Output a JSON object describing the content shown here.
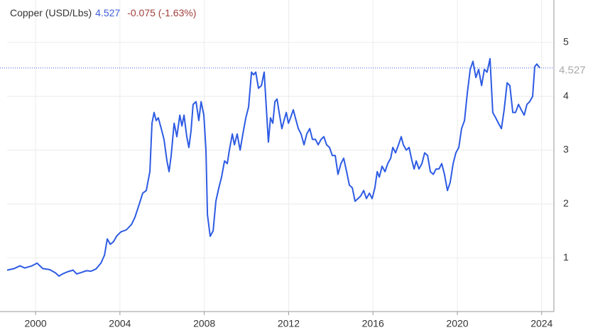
{
  "header": {
    "name": "Copper (USD/Lbs)",
    "price": "4.527",
    "change": "-0.075 (-1.63%)"
  },
  "chart_data": {
    "type": "line",
    "x": [
      1998.65,
      1998.99,
      1999.26,
      1999.49,
      1999.83,
      2000.07,
      2000.34,
      2000.67,
      2000.94,
      2001.11,
      2001.28,
      2001.52,
      2001.78,
      2001.95,
      2002.19,
      2002.42,
      2002.63,
      2002.86,
      2003.1,
      2003.27,
      2003.4,
      2003.54,
      2003.7,
      2003.84,
      2004.04,
      2004.31,
      2004.55,
      2004.71,
      2004.92,
      2005.08,
      2005.25,
      2005.42,
      2005.52,
      2005.62,
      2005.72,
      2005.82,
      2005.96,
      2006.09,
      2006.23,
      2006.33,
      2006.43,
      2006.57,
      2006.7,
      2006.84,
      2006.94,
      2007.04,
      2007.17,
      2007.27,
      2007.37,
      2007.47,
      2007.61,
      2007.74,
      2007.85,
      2007.98,
      2008.08,
      2008.15,
      2008.28,
      2008.42,
      2008.55,
      2008.69,
      2008.82,
      2008.96,
      2009.09,
      2009.19,
      2009.33,
      2009.43,
      2009.56,
      2009.7,
      2009.83,
      2009.97,
      2010.1,
      2010.24,
      2010.34,
      2010.44,
      2010.57,
      2010.71,
      2010.84,
      2010.94,
      2011.04,
      2011.14,
      2011.25,
      2011.35,
      2011.45,
      2011.55,
      2011.68,
      2011.78,
      2011.89,
      2011.99,
      2012.09,
      2012.22,
      2012.32,
      2012.46,
      2012.59,
      2012.73,
      2012.86,
      2013.0,
      2013.13,
      2013.27,
      2013.4,
      2013.54,
      2013.67,
      2013.8,
      2013.94,
      2014.07,
      2014.21,
      2014.34,
      2014.48,
      2014.61,
      2014.75,
      2014.88,
      2015.02,
      2015.15,
      2015.29,
      2015.42,
      2015.56,
      2015.69,
      2015.83,
      2015.96,
      2016.09,
      2016.2,
      2016.3,
      2016.43,
      2016.57,
      2016.7,
      2016.84,
      2016.94,
      2017.07,
      2017.21,
      2017.34,
      2017.44,
      2017.58,
      2017.71,
      2017.85,
      2017.95,
      2018.05,
      2018.18,
      2018.32,
      2018.45,
      2018.59,
      2018.72,
      2018.86,
      2018.99,
      2019.13,
      2019.26,
      2019.39,
      2019.53,
      2019.66,
      2019.8,
      2019.93,
      2020.07,
      2020.2,
      2020.34,
      2020.47,
      2020.61,
      2020.74,
      2020.88,
      2021.01,
      2021.15,
      2021.28,
      2021.41,
      2021.55,
      2021.68,
      2021.82,
      2021.95,
      2022.09,
      2022.22,
      2022.36,
      2022.49,
      2022.63,
      2022.76,
      2022.9,
      2023.03,
      2023.17,
      2023.3,
      2023.43,
      2023.57,
      2023.67,
      2023.77,
      2023.91
    ],
    "series": [
      {
        "color": "#2d5be3",
        "values": [
          0.77,
          0.8,
          0.85,
          0.81,
          0.85,
          0.9,
          0.8,
          0.78,
          0.72,
          0.66,
          0.7,
          0.74,
          0.77,
          0.7,
          0.73,
          0.76,
          0.75,
          0.79,
          0.9,
          1.05,
          1.35,
          1.25,
          1.3,
          1.4,
          1.48,
          1.52,
          1.62,
          1.75,
          2.0,
          2.2,
          2.25,
          2.6,
          3.5,
          3.7,
          3.55,
          3.6,
          3.4,
          3.2,
          2.8,
          2.6,
          2.9,
          3.5,
          3.25,
          3.65,
          3.45,
          3.65,
          3.25,
          3.05,
          3.35,
          3.85,
          3.9,
          3.55,
          3.9,
          3.65,
          3.0,
          1.8,
          1.4,
          1.5,
          2.05,
          2.3,
          2.5,
          2.8,
          2.75,
          3.0,
          3.3,
          3.1,
          3.3,
          3.0,
          3.3,
          3.6,
          3.8,
          4.45,
          4.4,
          4.45,
          4.15,
          4.2,
          4.45,
          3.8,
          3.15,
          3.6,
          3.5,
          3.9,
          3.95,
          3.7,
          3.4,
          3.55,
          3.7,
          3.5,
          3.6,
          3.75,
          3.6,
          3.4,
          3.3,
          3.1,
          3.3,
          3.4,
          3.2,
          3.2,
          3.1,
          3.2,
          3.25,
          3.1,
          3.05,
          2.9,
          2.9,
          2.55,
          2.75,
          2.85,
          2.6,
          2.35,
          2.3,
          2.05,
          2.1,
          2.15,
          2.25,
          2.1,
          2.2,
          2.1,
          2.3,
          2.6,
          2.5,
          2.7,
          2.6,
          2.75,
          2.85,
          3.05,
          2.95,
          3.1,
          3.25,
          3.1,
          3.0,
          3.05,
          2.8,
          2.65,
          2.8,
          2.65,
          2.75,
          2.95,
          2.9,
          2.6,
          2.55,
          2.65,
          2.65,
          2.75,
          2.55,
          2.25,
          2.4,
          2.75,
          2.95,
          3.05,
          3.4,
          3.55,
          4.05,
          4.5,
          4.65,
          4.35,
          4.5,
          4.2,
          4.5,
          4.45,
          4.7,
          3.7,
          3.6,
          3.5,
          3.4,
          3.75,
          4.25,
          4.2,
          3.7,
          3.7,
          3.85,
          3.75,
          3.65,
          3.85,
          3.9,
          4.0,
          4.55,
          4.6,
          4.527
        ]
      }
    ],
    "reference_line": 4.527,
    "xlim": [
      1998.65,
      2024.58
    ],
    "xticks": [
      2000,
      2004,
      2008,
      2012,
      2016,
      2020,
      2024
    ],
    "ylim": [
      0,
      5.79
    ],
    "yticks": [
      1,
      2,
      3,
      4,
      5
    ],
    "grid": true
  }
}
